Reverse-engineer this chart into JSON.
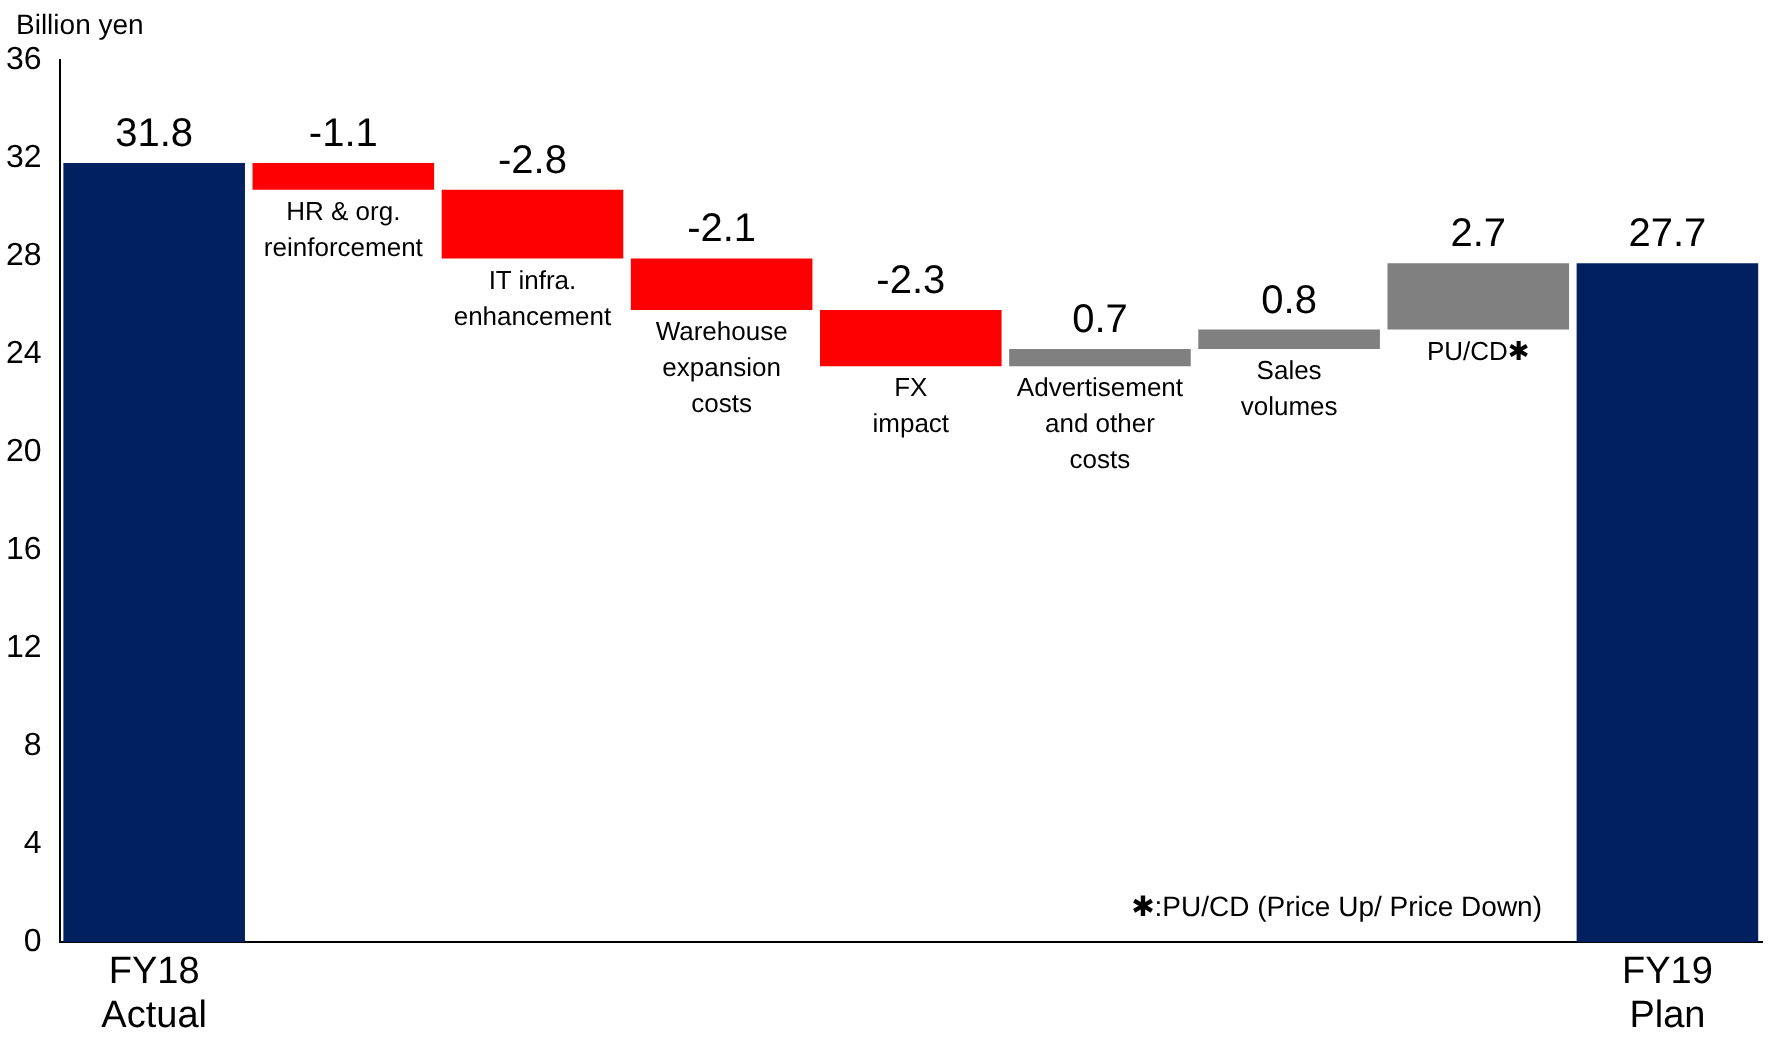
{
  "chart_data": {
    "type": "bar",
    "ylabel": "Billion yen",
    "categories": [
      "FY18\nActual",
      "HR & org.\nreinforcement",
      "IT infra.\nenhancement",
      "Warehouse\nexpansion\ncosts",
      "FX\nimpact",
      "Advertisement\nand other\ncosts",
      "Sales\nvolumes",
      "PU/CD✱",
      "FY19\nPlan"
    ],
    "values": [
      31.8,
      -1.1,
      -2.8,
      -2.1,
      -2.3,
      0.7,
      0.8,
      2.7,
      27.7
    ],
    "base": [
      0,
      31.8,
      30.7,
      27.9,
      25.8,
      23.5,
      24.2,
      25.0,
      0
    ],
    "colors": [
      "#002060",
      "#ff0000",
      "#ff0000",
      "#ff0000",
      "#ff0000",
      "#808080",
      "#808080",
      "#808080",
      "#002060"
    ],
    "ylim": [
      0,
      36
    ],
    "yticks": [
      0,
      4,
      8,
      12,
      16,
      20,
      24,
      28,
      32,
      36
    ],
    "grid": false,
    "legend": false,
    "data_labels": true,
    "annotations": [
      "✱:PU/CD (Price Up/ Price Down)"
    ]
  }
}
